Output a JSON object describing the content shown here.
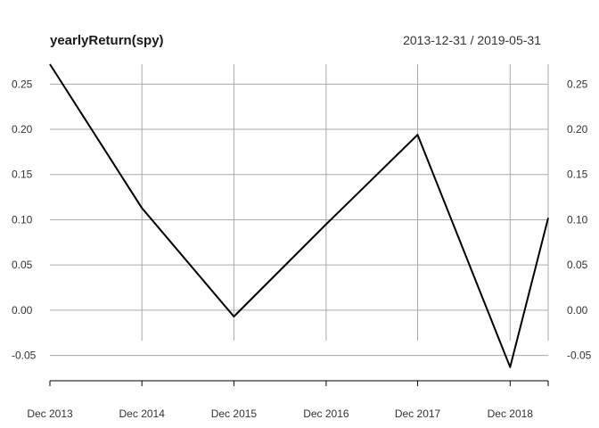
{
  "chart_data": {
    "type": "line",
    "title": "yearlyReturn(spy)",
    "date_range": "2013-12-31 / 2019-05-31",
    "x": [
      "2013-12-31",
      "2014-12-31",
      "2015-12-31",
      "2016-12-31",
      "2017-12-29",
      "2018-12-31",
      "2019-05-31"
    ],
    "x_tick_labels": [
      "Dec 2013",
      "Dec 2014",
      "Dec 2015",
      "Dec 2016",
      "Dec 2017",
      "Dec 2018"
    ],
    "y_tick_labels": [
      "0.25",
      "0.20",
      "0.15",
      "0.10",
      "0.05",
      "0.00",
      "-0.05"
    ],
    "y_ticks": [
      0.25,
      0.2,
      0.15,
      0.1,
      0.05,
      0.0,
      -0.05
    ],
    "ylim": [
      -0.078,
      0.272
    ],
    "series": [
      {
        "values": [
          0.272,
          0.113,
          -0.007,
          0.095,
          0.194,
          -0.063,
          0.102
        ]
      }
    ],
    "grid": true,
    "colors": {
      "line": "#000000",
      "grid": "#aaaaaa",
      "text": "#333333"
    }
  }
}
